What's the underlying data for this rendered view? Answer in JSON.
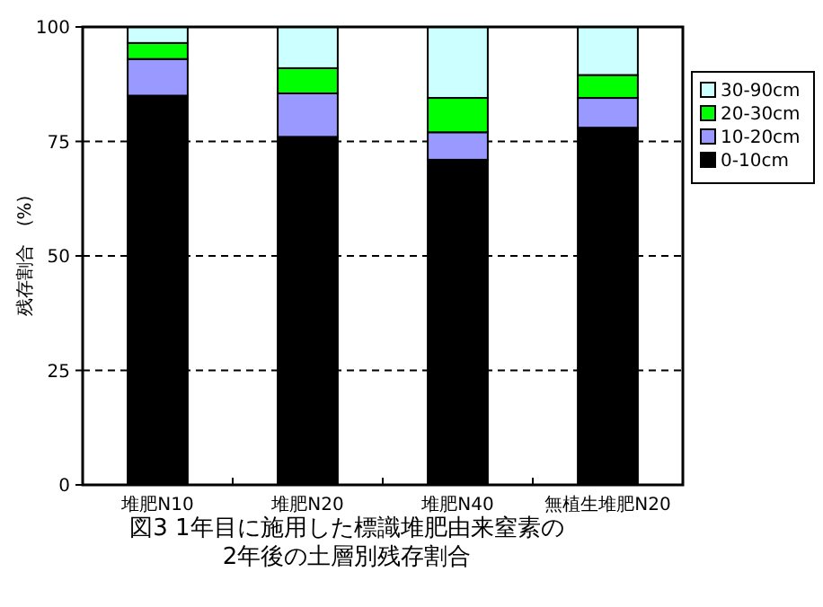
{
  "chart_data": {
    "type": "bar",
    "title": "図3 1年目に施用した標識堆肥由来窒素の\n2年後の土層別残存割合",
    "ylabel": "残存割合　(%)",
    "categories": [
      "堆肥N10",
      "堆肥N20",
      "堆肥N40",
      "無植生堆肥N20"
    ],
    "stacked": true,
    "series": [
      {
        "name": "0-10cm",
        "color": "#000000",
        "values": [
          85,
          76,
          71,
          78
        ]
      },
      {
        "name": "10-20cm",
        "color": "#9999ff",
        "values": [
          8,
          9.5,
          6,
          6.5
        ]
      },
      {
        "name": "20-30cm",
        "color": "#00ff00",
        "values": [
          3.5,
          5.5,
          7.5,
          5
        ]
      },
      {
        "name": "30-90cm",
        "color": "#ccffff",
        "values": [
          3.5,
          9,
          15.5,
          10.5
        ]
      }
    ],
    "ylim": [
      0,
      100
    ],
    "yticks": [
      0,
      25,
      50,
      75,
      100
    ],
    "grid": "y",
    "legend": "top right"
  }
}
